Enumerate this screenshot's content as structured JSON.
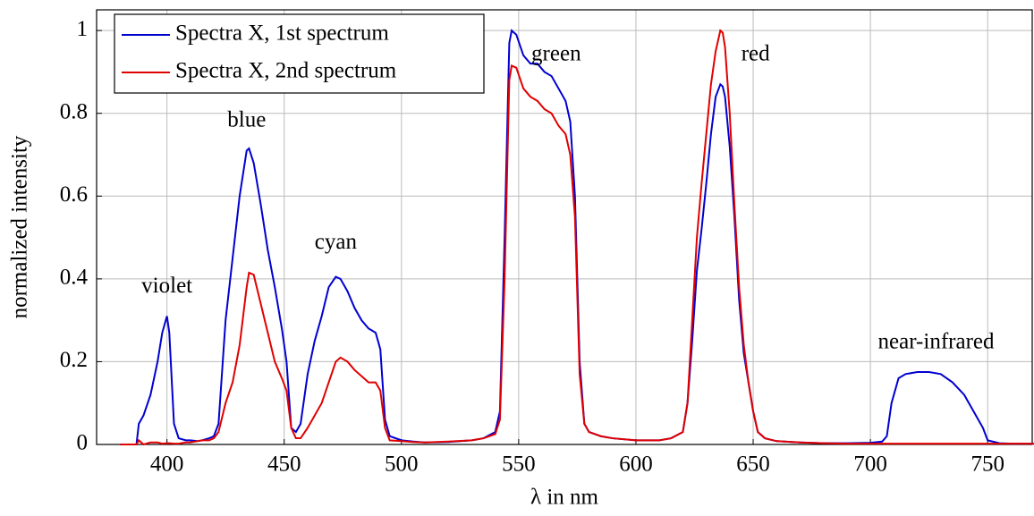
{
  "chart_data": {
    "type": "line",
    "xlabel": "λ in nm",
    "ylabel": "normalized intensity",
    "annotations": [
      "violet",
      "blue",
      "cyan",
      "green",
      "red",
      "near-infrared"
    ],
    "x": [
      380,
      387,
      388,
      390,
      393,
      396,
      398,
      400,
      401,
      403,
      405,
      408,
      410,
      413,
      415,
      418,
      420,
      422,
      425,
      428,
      431,
      434,
      435,
      437,
      440,
      443,
      446,
      449,
      451,
      453,
      455,
      457,
      460,
      463,
      466,
      469,
      472,
      474,
      477,
      480,
      483,
      486,
      489,
      491,
      493,
      495,
      500,
      505,
      510,
      520,
      530,
      535,
      540,
      542,
      544,
      546,
      547,
      549,
      552,
      555,
      558,
      561,
      564,
      567,
      570,
      572,
      574,
      576,
      578,
      580,
      585,
      590,
      600,
      610,
      615,
      620,
      622,
      624,
      626,
      628,
      630,
      632,
      634,
      636,
      637,
      638,
      640,
      642,
      644,
      646,
      648,
      650,
      652,
      655,
      660,
      670,
      680,
      690,
      700,
      705,
      707,
      709,
      712,
      715,
      720,
      725,
      730,
      735,
      740,
      745,
      748,
      750,
      755,
      760,
      770
    ],
    "series": [
      {
        "name": "Spectra X, 1st spectrum",
        "color": "#0000d0",
        "values": [
          0,
          0,
          0.05,
          0.07,
          0.12,
          0.2,
          0.27,
          0.31,
          0.27,
          0.05,
          0.015,
          0.01,
          0.01,
          0.008,
          0.01,
          0.015,
          0.02,
          0.05,
          0.3,
          0.45,
          0.6,
          0.71,
          0.715,
          0.68,
          0.58,
          0.47,
          0.38,
          0.28,
          0.2,
          0.04,
          0.03,
          0.05,
          0.17,
          0.25,
          0.31,
          0.38,
          0.405,
          0.4,
          0.37,
          0.33,
          0.3,
          0.28,
          0.27,
          0.23,
          0.06,
          0.02,
          0.01,
          0.007,
          0.005,
          0.006,
          0.01,
          0.015,
          0.03,
          0.08,
          0.5,
          0.97,
          1,
          0.99,
          0.94,
          0.92,
          0.92,
          0.9,
          0.89,
          0.86,
          0.83,
          0.78,
          0.6,
          0.2,
          0.05,
          0.03,
          0.02,
          0.015,
          0.01,
          0.01,
          0.015,
          0.03,
          0.1,
          0.25,
          0.42,
          0.52,
          0.63,
          0.75,
          0.84,
          0.87,
          0.865,
          0.84,
          0.72,
          0.55,
          0.35,
          0.22,
          0.15,
          0.08,
          0.03,
          0.015,
          0.008,
          0.005,
          0.003,
          0.003,
          0.004,
          0.007,
          0.02,
          0.1,
          0.16,
          0.17,
          0.175,
          0.175,
          0.17,
          0.15,
          0.12,
          0.07,
          0.04,
          0.01,
          0.003,
          0.002,
          0.002
        ]
      },
      {
        "name": "Spectra X, 2nd spectrum",
        "color": "#e00000",
        "values": [
          0,
          0,
          0.01,
          0,
          0.005,
          0.005,
          0.002,
          0.003,
          0.003,
          0.002,
          0.002,
          0.005,
          0.005,
          0.008,
          0.01,
          0.01,
          0.015,
          0.03,
          0.1,
          0.15,
          0.24,
          0.38,
          0.415,
          0.41,
          0.34,
          0.27,
          0.2,
          0.16,
          0.13,
          0.04,
          0.015,
          0.015,
          0.04,
          0.07,
          0.1,
          0.15,
          0.2,
          0.21,
          0.2,
          0.18,
          0.165,
          0.15,
          0.15,
          0.13,
          0.04,
          0.01,
          0.008,
          0.006,
          0.005,
          0.007,
          0.01,
          0.015,
          0.025,
          0.06,
          0.4,
          0.88,
          0.915,
          0.91,
          0.86,
          0.84,
          0.83,
          0.81,
          0.8,
          0.77,
          0.75,
          0.7,
          0.55,
          0.17,
          0.05,
          0.03,
          0.02,
          0.015,
          0.01,
          0.01,
          0.015,
          0.03,
          0.1,
          0.3,
          0.5,
          0.63,
          0.75,
          0.87,
          0.95,
          1,
          0.995,
          0.96,
          0.8,
          0.58,
          0.38,
          0.24,
          0.15,
          0.08,
          0.03,
          0.015,
          0.008,
          0.005,
          0.003,
          0.002,
          0.002,
          0.002,
          0.002,
          0.002,
          0.002,
          0.002,
          0.002,
          0.002,
          0.002,
          0.002,
          0.002,
          0.002,
          0.002,
          0.002,
          0.002,
          0.002,
          0.002
        ]
      }
    ],
    "xlim": [
      370,
      769
    ],
    "ylim": [
      0,
      1.05
    ],
    "xticks": [
      400,
      450,
      500,
      550,
      600,
      650,
      700,
      750
    ],
    "yticks": [
      0,
      0.2,
      0.4,
      0.6,
      0.8,
      1
    ],
    "grid": true,
    "legend": "upper left"
  }
}
